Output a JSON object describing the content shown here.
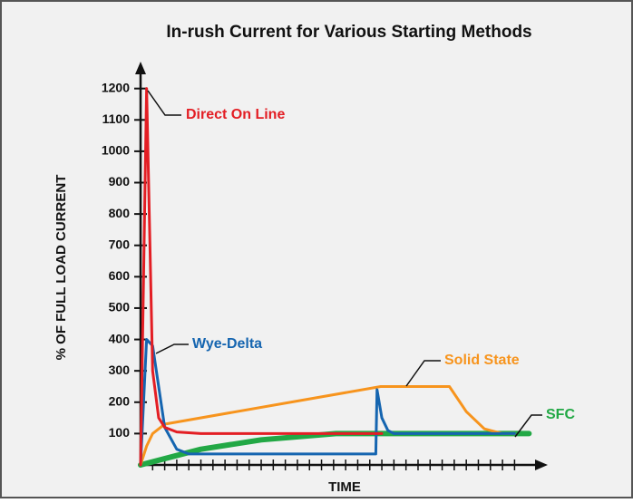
{
  "chart_data": {
    "type": "line",
    "title": "In-rush Current for Various Starting Methods",
    "xlabel": "TIME",
    "ylabel": "% OF FULL LOAD CURRENT",
    "xlim": [
      0,
      33
    ],
    "xticks": [
      1,
      2,
      3,
      4,
      5,
      6,
      7,
      8,
      9,
      10,
      11,
      12,
      13,
      14,
      15,
      16,
      17,
      18,
      19,
      20,
      21,
      22,
      23,
      24,
      25,
      26,
      27,
      28,
      29,
      30,
      31
    ],
    "ylim": [
      0,
      1280
    ],
    "yticks": [
      100,
      200,
      300,
      400,
      500,
      600,
      700,
      800,
      900,
      1000,
      1100,
      1200
    ],
    "series": [
      {
        "name": "SFC",
        "color": "#22a845",
        "x": [
          0,
          2,
          5,
          10,
          16.2,
          32.2
        ],
        "values": [
          0,
          20,
          50,
          80,
          100,
          100
        ]
      },
      {
        "name": "Solid State",
        "color": "#f7941d",
        "x": [
          0,
          0.5,
          1,
          2,
          19.9,
          25.6,
          27,
          28.5,
          30,
          31
        ],
        "values": [
          0,
          60,
          100,
          130,
          250,
          250,
          170,
          115,
          100,
          100
        ]
      },
      {
        "name": "Wye-Delta",
        "color": "#1565b0",
        "x": [
          0,
          0.5,
          1,
          1.5,
          2,
          3,
          4,
          19.5,
          19.6,
          20,
          20.5,
          21,
          31
        ],
        "values": [
          0,
          400,
          380,
          250,
          120,
          50,
          35,
          35,
          240,
          150,
          110,
          100,
          100
        ]
      },
      {
        "name": "Direct On Line",
        "color": "#e31e24",
        "x": [
          0,
          0.5,
          1,
          1.5,
          2,
          3,
          5,
          20
        ],
        "values": [
          0,
          1200,
          300,
          150,
          120,
          105,
          100,
          100
        ]
      }
    ]
  }
}
